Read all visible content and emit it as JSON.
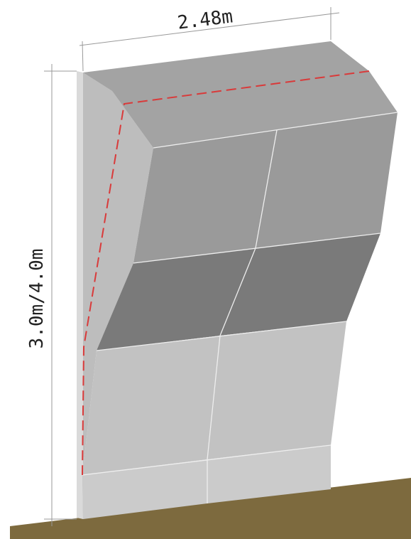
{
  "dimensions": {
    "width_label": "2.48m",
    "height_label": "3.0m/4.0m"
  },
  "colors": {
    "ground": "#7d6a3e",
    "dash_line": "#d93a3a",
    "top_face": "#a3a3a3",
    "upper_panel": "#9a9a9a",
    "mid_panel": "#7a7a7a",
    "lower_panel": "#c2c2c2",
    "base_panel": "#cbcbcb",
    "side_face": "#bdbdbd",
    "left_edge": "#dadada",
    "seam": "#eeeeee",
    "dim_line": "#999999"
  }
}
